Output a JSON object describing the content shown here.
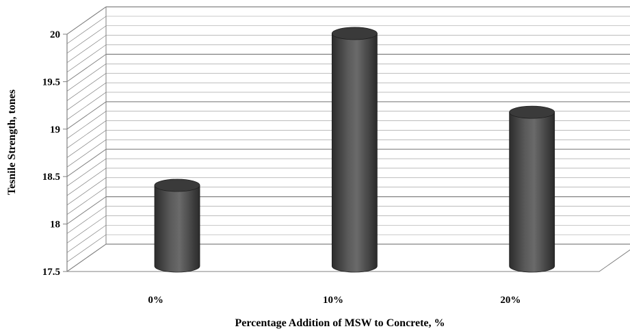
{
  "chart_data": {
    "type": "bar",
    "style": "3d-cylinder",
    "categories": [
      "0%",
      "10%",
      "20%"
    ],
    "values": [
      18.35,
      19.95,
      19.12
    ],
    "xlabel": "Percentage Addition of MSW to Concrete, %",
    "ylabel": "Tesnile Strength, tones",
    "ylim": [
      17.5,
      20
    ],
    "yticks": [
      "17.5",
      "18",
      "18.5",
      "19",
      "19.5",
      "20"
    ],
    "grid": true,
    "legend": "none",
    "colors": {
      "bar": "#4a4a4a",
      "grid": "#808080",
      "axis": "#808080"
    }
  }
}
